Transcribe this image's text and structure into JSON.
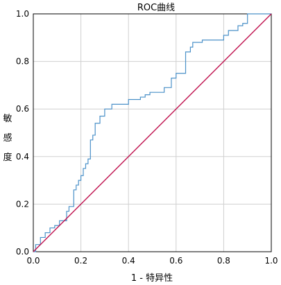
{
  "chart_data": {
    "type": "line",
    "title": "ROC曲线",
    "xlabel": "1 - 特异性",
    "ylabel": "敏感度",
    "xlim": [
      0.0,
      1.0
    ],
    "ylim": [
      0.0,
      1.0
    ],
    "x_ticks": [
      "0.0",
      "0.2",
      "0.4",
      "0.6",
      "0.8",
      "1.0"
    ],
    "y_ticks": [
      "0.0",
      "0.2",
      "0.4",
      "0.6",
      "0.8",
      "1.0"
    ],
    "grid": true,
    "colors": {
      "roc": "#4a90c8",
      "reference": "#c0124f"
    },
    "series": [
      {
        "role": "roc",
        "x": [
          0.0,
          0.01,
          0.01,
          0.03,
          0.03,
          0.05,
          0.05,
          0.07,
          0.07,
          0.09,
          0.09,
          0.11,
          0.11,
          0.14,
          0.14,
          0.15,
          0.15,
          0.17,
          0.17,
          0.18,
          0.18,
          0.19,
          0.19,
          0.2,
          0.2,
          0.21,
          0.21,
          0.22,
          0.22,
          0.23,
          0.23,
          0.24,
          0.24,
          0.25,
          0.25,
          0.26,
          0.26,
          0.28,
          0.28,
          0.3,
          0.3,
          0.33,
          0.33,
          0.35,
          0.35,
          0.4,
          0.4,
          0.45,
          0.45,
          0.47,
          0.47,
          0.49,
          0.49,
          0.52,
          0.52,
          0.55,
          0.55,
          0.58,
          0.58,
          0.6,
          0.6,
          0.61,
          0.61,
          0.64,
          0.64,
          0.66,
          0.66,
          0.67,
          0.67,
          0.71,
          0.71,
          0.73,
          0.73,
          0.8,
          0.8,
          0.82,
          0.82,
          0.86,
          0.86,
          0.88,
          0.88,
          0.9,
          0.9,
          0.94,
          0.94,
          0.96,
          0.96,
          1.0
        ],
        "y": [
          0.0,
          0.0,
          0.03,
          0.03,
          0.06,
          0.06,
          0.08,
          0.08,
          0.1,
          0.1,
          0.11,
          0.11,
          0.13,
          0.13,
          0.17,
          0.17,
          0.19,
          0.19,
          0.26,
          0.26,
          0.28,
          0.28,
          0.3,
          0.3,
          0.32,
          0.32,
          0.35,
          0.35,
          0.37,
          0.37,
          0.39,
          0.39,
          0.47,
          0.47,
          0.49,
          0.49,
          0.54,
          0.54,
          0.57,
          0.57,
          0.6,
          0.6,
          0.62,
          0.62,
          0.62,
          0.62,
          0.64,
          0.64,
          0.65,
          0.65,
          0.66,
          0.66,
          0.67,
          0.67,
          0.67,
          0.67,
          0.69,
          0.69,
          0.73,
          0.73,
          0.75,
          0.75,
          0.75,
          0.75,
          0.84,
          0.84,
          0.86,
          0.86,
          0.88,
          0.88,
          0.89,
          0.89,
          0.89,
          0.89,
          0.91,
          0.91,
          0.93,
          0.93,
          0.95,
          0.95,
          0.96,
          0.96,
          1.0,
          1.0,
          1.0,
          1.0,
          1.0,
          1.0
        ]
      },
      {
        "role": "reference",
        "x": [
          0.0,
          1.0
        ],
        "y": [
          0.0,
          1.0
        ]
      }
    ]
  }
}
